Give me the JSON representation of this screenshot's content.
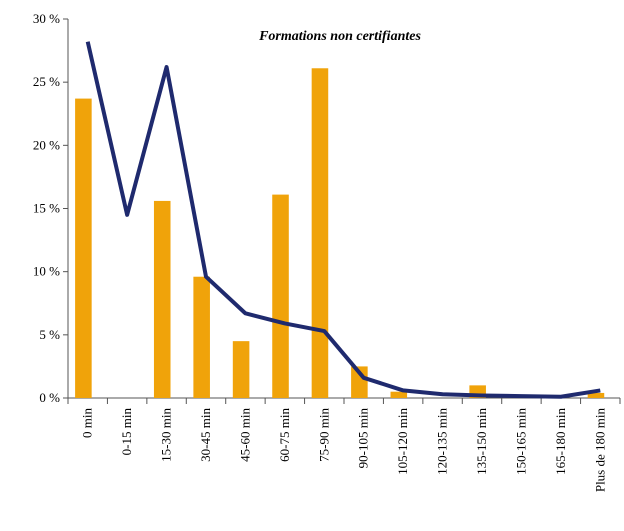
{
  "chart_data": {
    "type": "bar_line",
    "title": "Formations non certifiantes",
    "categories": [
      "0 min",
      "0-15 min",
      "15-30 min",
      "30-45 min",
      "45-60 min",
      "60-75 min",
      "75-90 min",
      "90-105 min",
      "105-120 min",
      "120-135 min",
      "135-150 min",
      "150-165 min",
      "165-180 min",
      "Plus de 180 min"
    ],
    "series": [
      {
        "type": "bar",
        "color": "#f0a30a",
        "values": [
          23.7,
          0,
          15.6,
          9.6,
          4.5,
          16.1,
          26.1,
          2.5,
          0.5,
          0,
          1.0,
          0,
          0,
          0.4
        ]
      },
      {
        "type": "line",
        "color": "#1f2a6e",
        "values": [
          28.2,
          14.5,
          26.2,
          9.6,
          6.7,
          5.9,
          5.3,
          1.6,
          0.6,
          0.3,
          0.2,
          0.15,
          0.1,
          0.6
        ]
      }
    ],
    "ylim": [
      0,
      30
    ],
    "yticks": [
      {
        "value": 0,
        "label": "0 %"
      },
      {
        "value": 5,
        "label": "5 %"
      },
      {
        "value": 10,
        "label": "10 %"
      },
      {
        "value": 15,
        "label": "15 %"
      },
      {
        "value": 20,
        "label": "20 %"
      },
      {
        "value": 25,
        "label": "25 %"
      },
      {
        "value": 30,
        "label": "30 %"
      }
    ],
    "grid": false
  }
}
